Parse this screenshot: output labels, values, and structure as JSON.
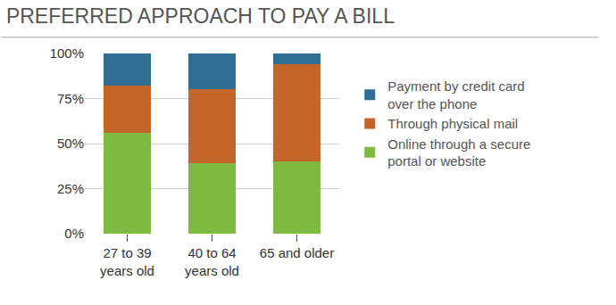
{
  "chart_data": {
    "type": "bar",
    "title": "PREFERRED APPROACH TO PAY A BILL",
    "categories": [
      "27 to 39\nyears old",
      "40 to 64\nyears old",
      "65 and older"
    ],
    "series": [
      {
        "name": "Online through a secure\nportal or website",
        "color": "#7dba3f",
        "values": [
          56,
          39,
          40
        ]
      },
      {
        "name": "Through physical mail",
        "color": "#c4662a",
        "values": [
          26,
          41,
          54
        ]
      },
      {
        "name": "Payment by credit card\nover the phone",
        "color": "#2f6e93",
        "values": [
          18,
          20,
          6
        ]
      }
    ],
    "stacked": true,
    "ylim": [
      0,
      100
    ],
    "yticks": [
      {
        "value": 0,
        "label": "0%"
      },
      {
        "value": 25,
        "label": "25%"
      },
      {
        "value": 50,
        "label": "50%"
      },
      {
        "value": 75,
        "label": "75%"
      },
      {
        "value": 100,
        "label": "100%"
      }
    ],
    "grid": true,
    "legend": "right"
  }
}
